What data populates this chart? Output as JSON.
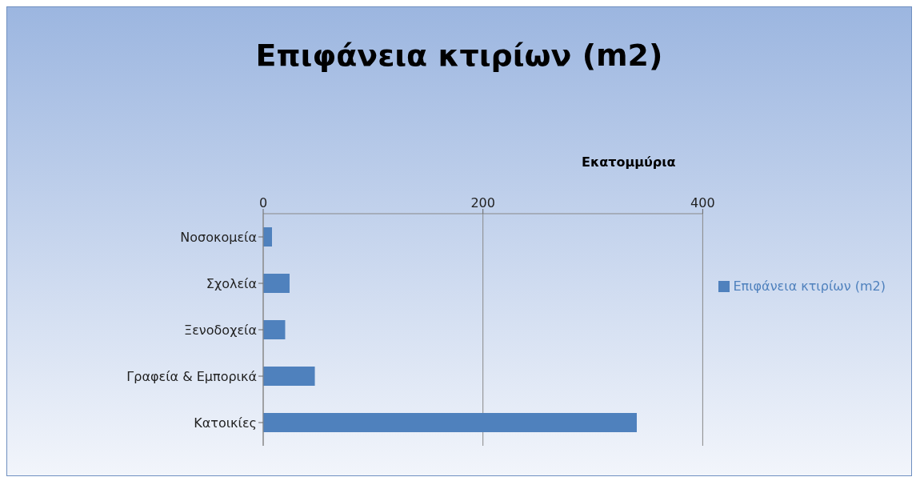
{
  "chart_data": {
    "type": "bar",
    "orientation": "horizontal",
    "title": "Επιφάνεια κτιρίων (m2)",
    "xlabel": "Εκατομμύρια",
    "categories": [
      "Νοσοκομεία",
      "Σχολεία",
      "Ξενοδοχεία",
      "Γραφεία & Εμπορικά",
      "Κατοικίες"
    ],
    "series": [
      {
        "name": "Επιφάνεια κτιρίων (m2)",
        "color": "#4f81bd",
        "values": [
          8,
          24,
          20,
          47,
          340
        ]
      }
    ],
    "xlim": [
      0,
      400
    ],
    "xticks": [
      0,
      200,
      400
    ],
    "grid": "x",
    "legend": "right"
  }
}
